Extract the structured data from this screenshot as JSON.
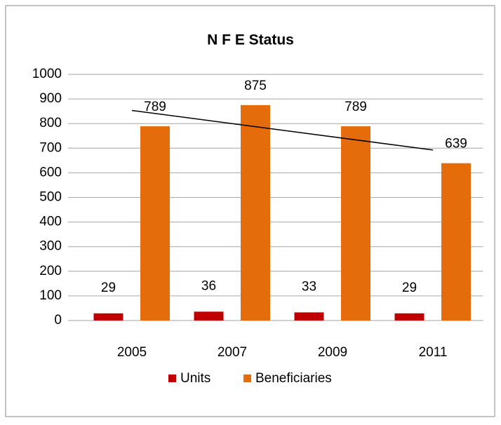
{
  "chart_data": {
    "type": "bar",
    "title": "N F E Status",
    "categories": [
      "2005",
      "2007",
      "2009",
      "2011"
    ],
    "series": [
      {
        "name": "Units",
        "color": "#c00000",
        "values": [
          29,
          36,
          33,
          29
        ]
      },
      {
        "name": "Beneficiaries",
        "color": "#e46c0a",
        "values": [
          789,
          875,
          789,
          639
        ]
      }
    ],
    "ylim": [
      0,
      1000
    ],
    "yticks": [
      0,
      100,
      200,
      300,
      400,
      500,
      600,
      700,
      800,
      900,
      1000
    ],
    "grid": true,
    "legend": "bottom",
    "trendline": "Beneficiaries"
  }
}
